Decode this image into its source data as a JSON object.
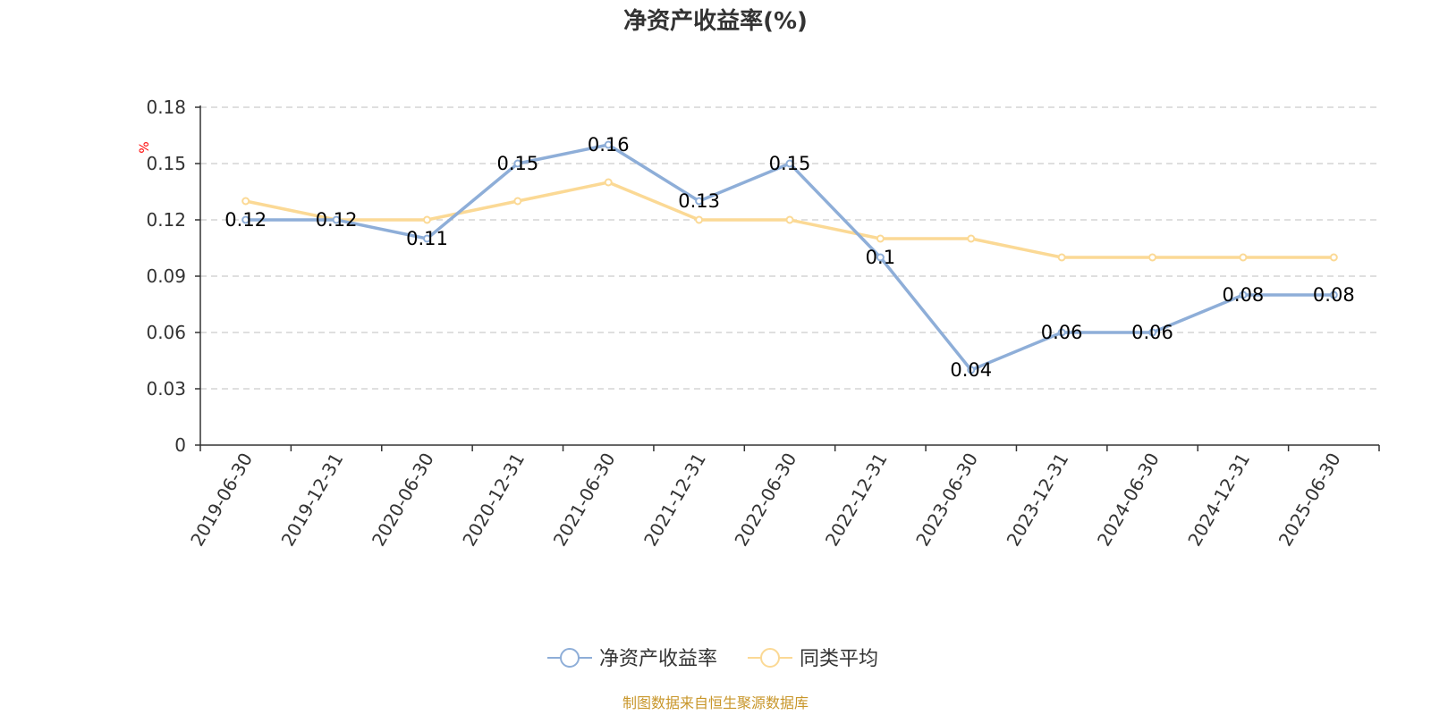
{
  "chart_data": {
    "type": "line",
    "title": "净资产收益率(%)",
    "y_unit": "%",
    "categories": [
      "2019-06-30",
      "2019-12-31",
      "2020-06-30",
      "2020-12-31",
      "2021-06-30",
      "2021-12-31",
      "2022-06-30",
      "2022-12-31",
      "2023-06-30",
      "2023-12-31",
      "2024-06-30",
      "2024-12-31",
      "2025-06-30"
    ],
    "series": [
      {
        "name": "净资产收益率",
        "color": "#8eaed8",
        "values": [
          0.12,
          0.12,
          0.11,
          0.15,
          0.16,
          0.13,
          0.15,
          0.1,
          0.04,
          0.06,
          0.06,
          0.08,
          0.08
        ],
        "labels": [
          "0.12",
          "0.12",
          "0.11",
          "0.15",
          "0.16",
          "0.13",
          "0.15",
          "0.1",
          "0.04",
          "0.06",
          "0.06",
          "0.08",
          "0.08"
        ]
      },
      {
        "name": "同类平均",
        "color": "#fbd995",
        "values": [
          0.13,
          0.12,
          0.12,
          0.13,
          0.14,
          0.12,
          0.12,
          0.11,
          0.11,
          0.1,
          0.1,
          0.1,
          0.1
        ]
      }
    ],
    "ylim": [
      0,
      0.18
    ],
    "yticks": [
      "0",
      "0.03",
      "0.06",
      "0.09",
      "0.12",
      "0.15",
      "0.18"
    ],
    "grid": true,
    "legend_position": "bottom-center"
  },
  "footer": {
    "source": "制图数据来自恒生聚源数据库"
  }
}
